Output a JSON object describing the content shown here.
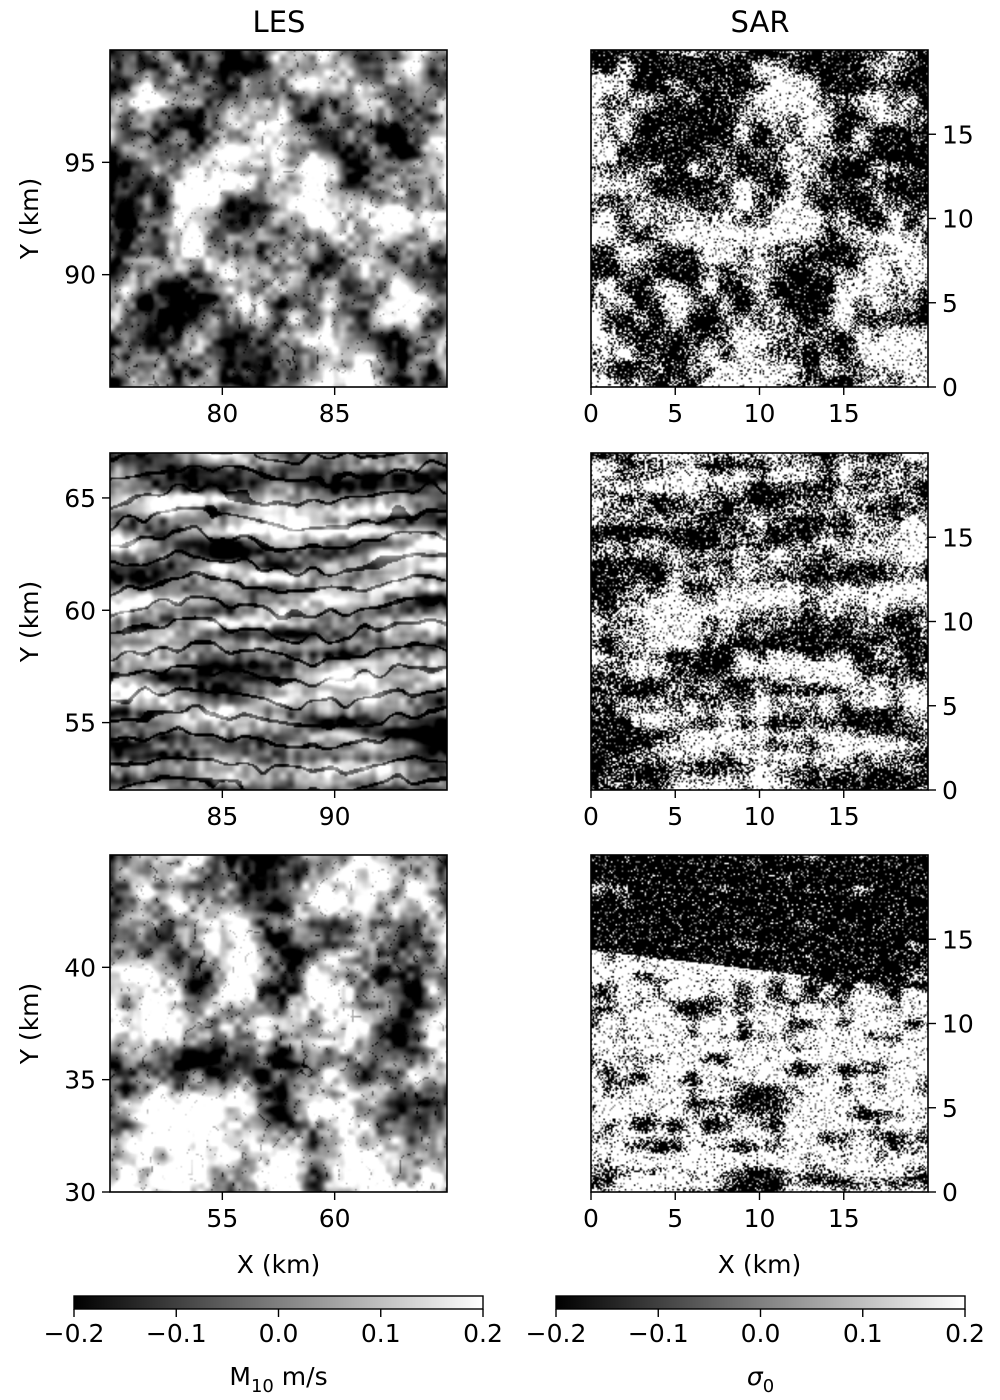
{
  "column_titles": [
    "LES",
    "SAR"
  ],
  "chart_data": [
    {
      "type": "heatmap",
      "panel": "LES row 1",
      "title": "LES",
      "xlabel": "",
      "ylabel": "Y (km)",
      "xlim": [
        75,
        90
      ],
      "ylim": [
        85,
        100
      ],
      "xticks": [
        80,
        85
      ],
      "yticks": [
        90,
        95
      ],
      "y_axis_side": "left",
      "texture": "cellular",
      "seed": 11
    },
    {
      "type": "heatmap",
      "panel": "SAR row 1",
      "title": "SAR",
      "xlabel": "",
      "ylabel": "",
      "xlim": [
        0,
        20
      ],
      "ylim": [
        0,
        20
      ],
      "xticks": [
        0,
        5,
        10,
        15
      ],
      "yticks": [
        0,
        5,
        10,
        15
      ],
      "y_axis_side": "right",
      "texture": "speckle",
      "seed": 21
    },
    {
      "type": "heatmap",
      "panel": "LES row 2",
      "xlabel": "",
      "ylabel": "Y (km)",
      "xlim": [
        80,
        95
      ],
      "ylim": [
        52,
        67
      ],
      "xticks": [
        85,
        90
      ],
      "yticks": [
        55,
        60,
        65
      ],
      "y_axis_side": "left",
      "texture": "streaky",
      "seed": 12
    },
    {
      "type": "heatmap",
      "panel": "SAR row 2",
      "xlabel": "",
      "ylabel": "",
      "xlim": [
        0,
        20
      ],
      "ylim": [
        0,
        20
      ],
      "xticks": [
        0,
        5,
        10,
        15
      ],
      "yticks": [
        0,
        5,
        10,
        15
      ],
      "y_axis_side": "right",
      "texture": "speckle-streaky",
      "seed": 22
    },
    {
      "type": "heatmap",
      "panel": "LES row 3",
      "xlabel": "X (km)",
      "ylabel": "Y (km)",
      "xlim": [
        50,
        65
      ],
      "ylim": [
        30,
        45
      ],
      "xticks": [
        55,
        60
      ],
      "yticks": [
        30,
        35,
        40
      ],
      "y_axis_side": "left",
      "texture": "cellular",
      "seed": 13
    },
    {
      "type": "heatmap",
      "panel": "SAR row 3",
      "xlabel": "X (km)",
      "ylabel": "",
      "xlim": [
        0,
        20
      ],
      "ylim": [
        0,
        20
      ],
      "xticks": [
        0,
        5,
        10,
        15
      ],
      "yticks": [
        0,
        5,
        10,
        15
      ],
      "y_axis_side": "right",
      "texture": "speckle-dark-top",
      "seed": 23
    }
  ],
  "colorbars": [
    {
      "label_main": "M",
      "label_sub": "10",
      "label_rest": " m/s",
      "range": [
        -0.2,
        0.2
      ],
      "tick_labels": [
        "−0.2",
        "−0.1",
        "0.0",
        "0.1",
        "0.2"
      ],
      "colormap": "gray"
    },
    {
      "label_main": "σ",
      "label_sub": "0",
      "label_rest": "",
      "range": [
        -0.2,
        0.2
      ],
      "tick_labels": [
        "−0.2",
        "−0.1",
        "0.0",
        "0.1",
        "0.2"
      ],
      "colormap": "gray"
    }
  ],
  "colors": {
    "colormap_low": "#000000",
    "colormap_high": "#ffffff",
    "axes": "#000000"
  }
}
